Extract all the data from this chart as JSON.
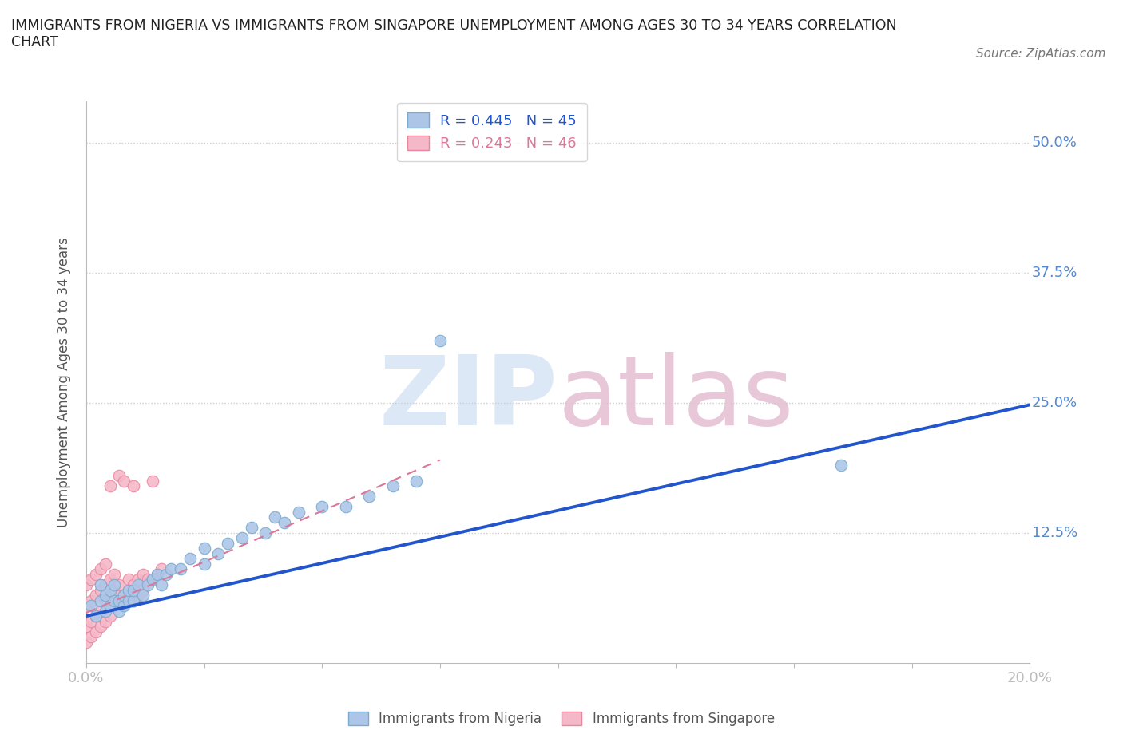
{
  "title": "IMMIGRANTS FROM NIGERIA VS IMMIGRANTS FROM SINGAPORE UNEMPLOYMENT AMONG AGES 30 TO 34 YEARS CORRELATION\nCHART",
  "source": "Source: ZipAtlas.com",
  "ylabel": "Unemployment Among Ages 30 to 34 years",
  "xlim": [
    0.0,
    0.2
  ],
  "ylim": [
    0.0,
    0.54
  ],
  "xticks": [
    0.0,
    0.025,
    0.05,
    0.075,
    0.1,
    0.125,
    0.15,
    0.175,
    0.2
  ],
  "xtick_labels": [
    "0.0%",
    "",
    "",
    "",
    "",
    "",
    "",
    "",
    "20.0%"
  ],
  "ytick_labels": [
    "12.5%",
    "25.0%",
    "37.5%",
    "50.0%"
  ],
  "yticks": [
    0.125,
    0.25,
    0.375,
    0.5
  ],
  "nigeria_color": "#adc6e8",
  "nigeria_edge": "#7aaace",
  "singapore_color": "#f5b8c8",
  "singapore_edge": "#e8879e",
  "nigeria_line_color": "#2255cc",
  "singapore_line_color": "#dd7799",
  "watermark_color": "#dce8f5",
  "R_nigeria": 0.445,
  "N_nigeria": 45,
  "R_singapore": 0.243,
  "N_singapore": 46,
  "nigeria_scatter_x": [
    0.001,
    0.002,
    0.003,
    0.003,
    0.004,
    0.004,
    0.005,
    0.005,
    0.006,
    0.006,
    0.007,
    0.007,
    0.008,
    0.008,
    0.009,
    0.009,
    0.01,
    0.01,
    0.011,
    0.012,
    0.013,
    0.014,
    0.015,
    0.016,
    0.017,
    0.018,
    0.02,
    0.022,
    0.025,
    0.025,
    0.028,
    0.03,
    0.033,
    0.035,
    0.038,
    0.04,
    0.042,
    0.045,
    0.05,
    0.055,
    0.06,
    0.065,
    0.07,
    0.075,
    0.16
  ],
  "nigeria_scatter_y": [
    0.055,
    0.045,
    0.06,
    0.075,
    0.05,
    0.065,
    0.055,
    0.07,
    0.06,
    0.075,
    0.05,
    0.06,
    0.055,
    0.065,
    0.06,
    0.07,
    0.06,
    0.07,
    0.075,
    0.065,
    0.075,
    0.08,
    0.085,
    0.075,
    0.085,
    0.09,
    0.09,
    0.1,
    0.095,
    0.11,
    0.105,
    0.115,
    0.12,
    0.13,
    0.125,
    0.14,
    0.135,
    0.145,
    0.15,
    0.15,
    0.16,
    0.17,
    0.175,
    0.31,
    0.19
  ],
  "singapore_scatter_x": [
    0.0,
    0.0,
    0.0,
    0.0,
    0.001,
    0.001,
    0.001,
    0.001,
    0.002,
    0.002,
    0.002,
    0.002,
    0.003,
    0.003,
    0.003,
    0.003,
    0.004,
    0.004,
    0.004,
    0.004,
    0.005,
    0.005,
    0.005,
    0.005,
    0.006,
    0.006,
    0.006,
    0.007,
    0.007,
    0.007,
    0.008,
    0.008,
    0.009,
    0.009,
    0.01,
    0.01,
    0.01,
    0.011,
    0.011,
    0.012,
    0.012,
    0.013,
    0.014,
    0.014,
    0.015,
    0.016
  ],
  "singapore_scatter_y": [
    0.02,
    0.035,
    0.055,
    0.075,
    0.025,
    0.04,
    0.06,
    0.08,
    0.03,
    0.045,
    0.065,
    0.085,
    0.035,
    0.05,
    0.07,
    0.09,
    0.04,
    0.06,
    0.075,
    0.095,
    0.045,
    0.065,
    0.08,
    0.17,
    0.055,
    0.07,
    0.085,
    0.06,
    0.075,
    0.18,
    0.065,
    0.175,
    0.07,
    0.08,
    0.06,
    0.075,
    0.17,
    0.065,
    0.08,
    0.07,
    0.085,
    0.08,
    0.08,
    0.175,
    0.085,
    0.09
  ],
  "nigeria_line_x": [
    0.0,
    0.2
  ],
  "nigeria_line_y": [
    0.045,
    0.248
  ],
  "singapore_line_x": [
    0.0,
    0.075
  ],
  "singapore_line_y": [
    0.048,
    0.195
  ],
  "background_color": "#ffffff",
  "grid_color": "#cccccc",
  "title_color": "#222222",
  "axis_color": "#bbbbbb",
  "tick_color": "#5588cc"
}
